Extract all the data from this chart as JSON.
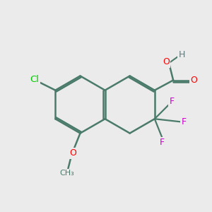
{
  "bg_color": "#ebebeb",
  "bond_color": "#4a7a6a",
  "bond_width": 1.8,
  "atom_colors": {
    "O": "#ff0000",
    "Cl": "#00cc00",
    "F": "#cc00cc",
    "H": "#607878"
  },
  "figsize": [
    3.0,
    3.0
  ],
  "dpi": 100
}
